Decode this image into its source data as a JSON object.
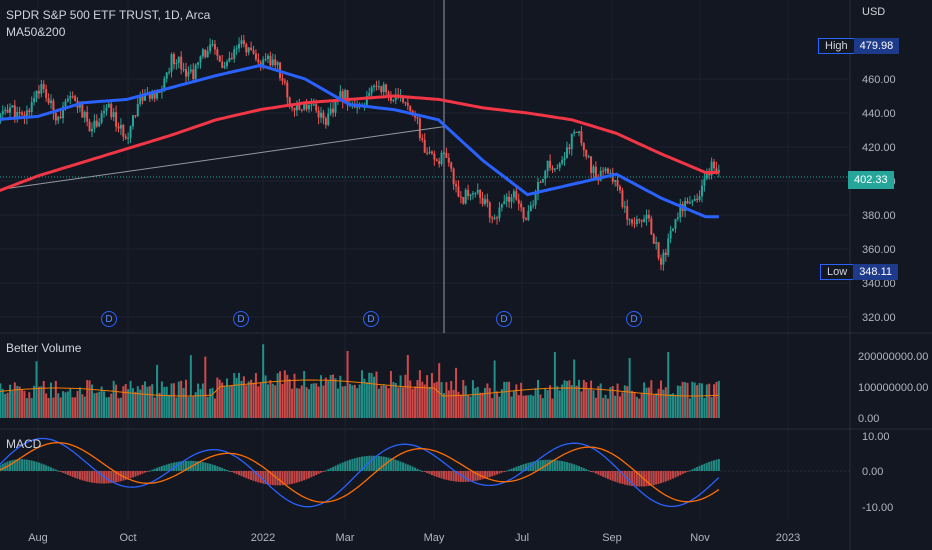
{
  "header": {
    "symbol_line": "SPDR S&P 500 ETF TRUST, 1D, Arca",
    "indicator_ma": "MA50&200"
  },
  "panes": {
    "volume_title": "Better Volume",
    "macd_title": "MACD"
  },
  "currency": "USD",
  "badges": {
    "high_label": "High",
    "high_value": "479.98",
    "low_label": "Low",
    "low_value": "348.11",
    "last_price": "402.33"
  },
  "dividend_label": "D",
  "colors": {
    "background": "#131722",
    "up": "#26a69a",
    "down": "#ef5350",
    "ma50": "#2962ff",
    "ma200": "#f23645",
    "volume_avg": "#f57c00",
    "macd_line": "#2962ff",
    "signal_line": "#ff6d00"
  },
  "chart_data": {
    "type": "line",
    "title": "SPDR S&P 500 ETF TRUST, 1D, Arca",
    "x_ticks": [
      "Aug",
      "Oct",
      "2022",
      "Mar",
      "May",
      "Jul",
      "Sep",
      "Nov",
      "2023"
    ],
    "price_ticks": [
      "460.00",
      "440.00",
      "420.00",
      "400.00",
      "380.00",
      "360.00",
      "340.00",
      "320.00"
    ],
    "volume_ticks": [
      "200000000.00",
      "100000000.00",
      "0.00"
    ],
    "macd_ticks": [
      "10.00",
      "0.00",
      "-10.00"
    ],
    "price_ylim": [
      313,
      490
    ],
    "series": [
      {
        "name": "Price",
        "x": [
          "2021-07",
          "2021-08",
          "2021-09",
          "2021-10",
          "2021-11",
          "2021-12",
          "2022-01",
          "2022-02",
          "2022-03",
          "2022-04",
          "2022-05",
          "2022-06",
          "2022-07",
          "2022-08",
          "2022-09",
          "2022-10",
          "2022-11"
        ],
        "values": [
          432,
          449,
          440,
          433,
          466,
          473,
          475,
          440,
          445,
          455,
          410,
          385,
          385,
          425,
          395,
          360,
          402
        ]
      },
      {
        "name": "MA50",
        "x": [
          "2021-07",
          "2021-08",
          "2021-09",
          "2021-10",
          "2021-11",
          "2021-12",
          "2022-01",
          "2022-02",
          "2022-03",
          "2022-04",
          "2022-05",
          "2022-06",
          "2022-07",
          "2022-08",
          "2022-09",
          "2022-10",
          "2022-11"
        ],
        "values": [
          436,
          438,
          446,
          448,
          455,
          462,
          468,
          460,
          445,
          442,
          436,
          412,
          392,
          398,
          404,
          390,
          379
        ]
      },
      {
        "name": "MA200",
        "x": [
          "2021-07",
          "2021-08",
          "2021-09",
          "2021-10",
          "2021-11",
          "2021-12",
          "2022-01",
          "2022-02",
          "2022-03",
          "2022-04",
          "2022-05",
          "2022-06",
          "2022-07",
          "2022-08",
          "2022-09",
          "2022-10",
          "2022-11"
        ],
        "values": [
          393,
          403,
          411,
          419,
          427,
          436,
          442,
          446,
          448,
          450,
          448,
          443,
          440,
          436,
          428,
          416,
          405
        ]
      }
    ],
    "dividend_dates": [
      "2021-09",
      "2021-12",
      "2022-03",
      "2022-06",
      "2022-09"
    ],
    "high": 479.98,
    "low": 348.11,
    "last": 402.33
  }
}
